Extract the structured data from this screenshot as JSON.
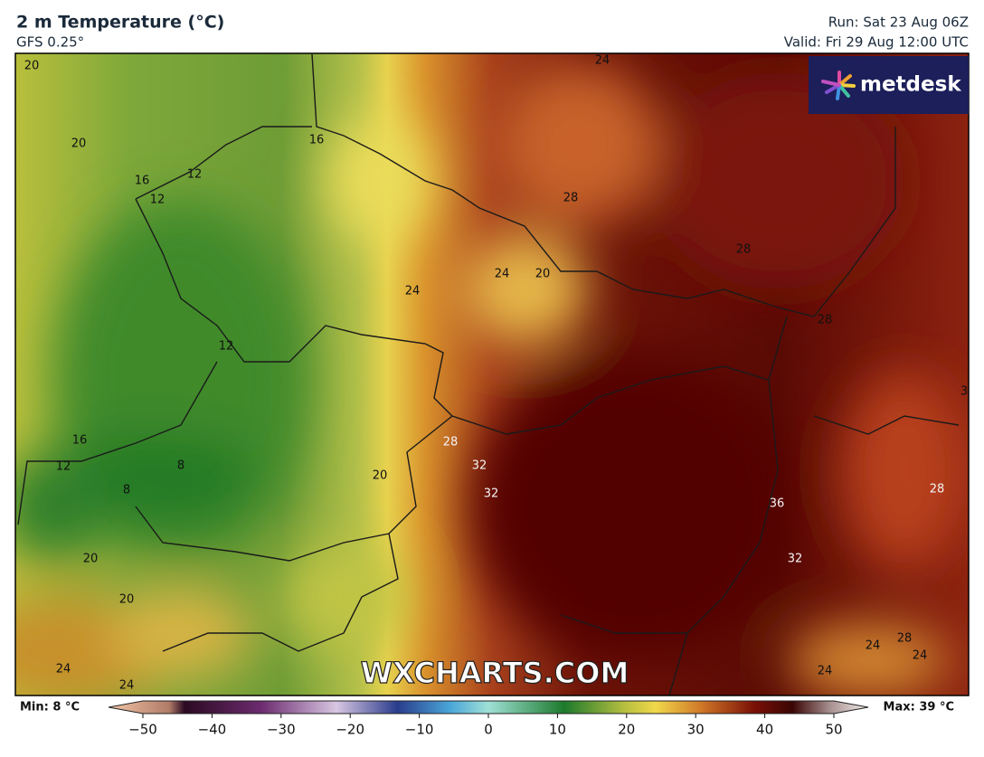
{
  "header": {
    "title": "2 m Temperature (°C)",
    "subtitle": "GFS 0.25°",
    "run": "Run: Sat 23 Aug 06Z",
    "valid": "Valid: Fri 29 Aug 12:00 UTC"
  },
  "logo": "metdesk",
  "watermark": "WXCHARTS.COM",
  "map": {
    "contour_labels": [
      "20",
      "20",
      "16",
      "12",
      "12",
      "16",
      "24",
      "28",
      "28",
      "24",
      "20",
      "24",
      "28",
      "12",
      "3",
      "16",
      "12",
      "8",
      "8",
      "28",
      "32",
      "32",
      "20",
      "36",
      "28",
      "20",
      "32",
      "20",
      "28",
      "24",
      "24",
      "24",
      "24",
      "24"
    ]
  },
  "legend": {
    "min_label": "Min: 8 °C",
    "max_label": "Max: 39 °C",
    "lim": [
      -50,
      50
    ],
    "ticks": [
      {
        "value": -50,
        "label": "−50"
      },
      {
        "value": -40,
        "label": "−40"
      },
      {
        "value": -30,
        "label": "−30"
      },
      {
        "value": -20,
        "label": "−20"
      },
      {
        "value": -10,
        "label": "−10"
      },
      0,
      10,
      20,
      30,
      40,
      50
    ]
  }
}
